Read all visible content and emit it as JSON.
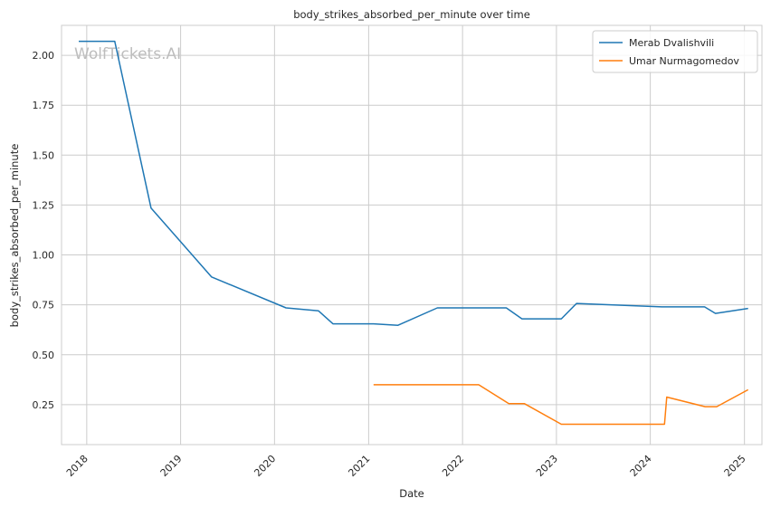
{
  "chart_data": {
    "type": "line",
    "title": "body_strikes_absorbed_per_minute over time",
    "xlabel": "Date",
    "ylabel": "body_strikes_absorbed_per_minute",
    "watermark": "WolfTickets.AI",
    "grid": true,
    "legend_position": "top-right",
    "xlim": [
      "2017-09-25",
      "2025-03-10"
    ],
    "ylim": [
      0.05,
      2.15
    ],
    "x_ticks": [
      "2018",
      "2019",
      "2020",
      "2021",
      "2022",
      "2023",
      "2024",
      "2025"
    ],
    "y_ticks": [
      "0.25",
      "0.50",
      "0.75",
      "1.00",
      "1.25",
      "1.50",
      "1.75",
      "2.00"
    ],
    "series": [
      {
        "name": "Merab Dvalishvili",
        "color": "#1f77b4",
        "points": [
          {
            "x": "2017-12-01",
            "y": 2.07
          },
          {
            "x": "2018-04-20",
            "y": 2.07
          },
          {
            "x": "2018-09-08",
            "y": 1.235
          },
          {
            "x": "2019-05-01",
            "y": 0.89
          },
          {
            "x": "2020-02-15",
            "y": 0.735
          },
          {
            "x": "2020-06-20",
            "y": 0.72
          },
          {
            "x": "2020-08-15",
            "y": 0.655
          },
          {
            "x": "2021-01-20",
            "y": 0.655
          },
          {
            "x": "2021-04-25",
            "y": 0.648
          },
          {
            "x": "2021-09-25",
            "y": 0.735
          },
          {
            "x": "2022-06-20",
            "y": 0.735
          },
          {
            "x": "2022-08-20",
            "y": 0.68
          },
          {
            "x": "2023-01-20",
            "y": 0.68
          },
          {
            "x": "2023-03-20",
            "y": 0.757
          },
          {
            "x": "2024-02-15",
            "y": 0.74
          },
          {
            "x": "2024-07-30",
            "y": 0.74
          },
          {
            "x": "2024-09-10",
            "y": 0.707
          },
          {
            "x": "2025-01-15",
            "y": 0.732
          }
        ]
      },
      {
        "name": "Umar Nurmagomedov",
        "color": "#ff7f0e",
        "points": [
          {
            "x": "2021-01-20",
            "y": 0.35
          },
          {
            "x": "2022-03-05",
            "y": 0.35
          },
          {
            "x": "2022-06-30",
            "y": 0.255
          },
          {
            "x": "2022-08-30",
            "y": 0.255
          },
          {
            "x": "2023-01-20",
            "y": 0.152
          },
          {
            "x": "2024-02-25",
            "y": 0.152
          },
          {
            "x": "2024-03-05",
            "y": 0.288
          },
          {
            "x": "2024-08-01",
            "y": 0.24
          },
          {
            "x": "2024-09-15",
            "y": 0.24
          },
          {
            "x": "2025-01-15",
            "y": 0.325
          }
        ]
      }
    ]
  }
}
